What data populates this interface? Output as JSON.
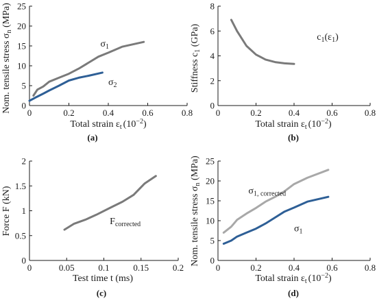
{
  "colors": {
    "gray": "#7a7a7a",
    "blue": "#2e5f96",
    "lightgray": "#a8a8a8",
    "axis": "#1a1a1a"
  },
  "chart_data": [
    {
      "panel": "(a)",
      "type": "line",
      "xlabel": "Total strain ε",
      "xlabel_sub": "t",
      "xlabel_unit": "(10",
      "xlabel_sup": "−2",
      "xlabel_close": ")",
      "ylabel": "Nom. tensile stress σ",
      "ylabel_sub": "n",
      "ylabel_unit": " (MPa)",
      "xlim": [
        0,
        0.8
      ],
      "ylim": [
        0,
        25
      ],
      "xticks": [
        "0",
        "0.2",
        "0.4",
        "0.6",
        "0.8"
      ],
      "yticks": [
        "0",
        "5",
        "10",
        "15",
        "20",
        "25"
      ],
      "series": [
        {
          "name": "σ",
          "name_sub": "1",
          "color": "gray",
          "x": [
            0.02,
            0.04,
            0.07,
            0.1,
            0.15,
            0.2,
            0.25,
            0.3,
            0.35,
            0.4,
            0.47,
            0.58
          ],
          "y": [
            2.5,
            4.0,
            4.8,
            6.0,
            7.0,
            8.0,
            9.3,
            10.8,
            12.3,
            13.3,
            14.8,
            16.0
          ]
        },
        {
          "name": "σ",
          "name_sub": "2",
          "color": "blue",
          "x": [
            0.0,
            0.03,
            0.07,
            0.1,
            0.15,
            0.2,
            0.25,
            0.3,
            0.37
          ],
          "y": [
            1.2,
            2.0,
            3.0,
            3.8,
            5.0,
            6.3,
            7.0,
            7.5,
            8.3
          ]
        }
      ]
    },
    {
      "panel": "(b)",
      "type": "line",
      "xlabel": "Total strain ε",
      "xlabel_sub": "t",
      "xlabel_unit": "(10",
      "xlabel_sup": "−2",
      "xlabel_close": ")",
      "ylabel": "Stiffness c",
      "ylabel_sub": "1",
      "ylabel_unit": " (GPa)",
      "xlim": [
        0,
        0.8
      ],
      "ylim": [
        0,
        8
      ],
      "xticks": [
        "0",
        "0.2",
        "0.4",
        "0.6",
        "0.8"
      ],
      "yticks": [
        "0",
        "2",
        "4",
        "6",
        "8"
      ],
      "series": [
        {
          "name": "c",
          "name_sub": "1",
          "name_rest": "(ε",
          "name_rest_sub": "1",
          "name_close": ")",
          "color": "gray",
          "x": [
            0.07,
            0.1,
            0.15,
            0.2,
            0.25,
            0.3,
            0.35,
            0.4
          ],
          "y": [
            6.9,
            6.0,
            4.8,
            4.1,
            3.7,
            3.5,
            3.4,
            3.35
          ]
        }
      ]
    },
    {
      "panel": "(c)",
      "type": "line",
      "xlabel": "Test time t (ms)",
      "ylabel": "Force F (kN)",
      "xlim": [
        0,
        0.2
      ],
      "ylim": [
        0,
        2
      ],
      "xticks": [
        "0",
        "0.05",
        "0.1",
        "0.15",
        "0.2"
      ],
      "yticks": [
        "0",
        "0.5",
        "1",
        "1.5",
        "2"
      ],
      "series": [
        {
          "name": "F",
          "name_sub": "corrected",
          "color": "gray",
          "x": [
            0.047,
            0.06,
            0.075,
            0.09,
            0.11,
            0.125,
            0.14,
            0.155,
            0.17
          ],
          "y": [
            0.62,
            0.74,
            0.82,
            0.92,
            1.07,
            1.18,
            1.32,
            1.55,
            1.7
          ]
        }
      ]
    },
    {
      "panel": "(d)",
      "type": "line",
      "xlabel": "Total strain ε",
      "xlabel_sub": "t",
      "xlabel_unit": "(10",
      "xlabel_sup": "−2",
      "xlabel_close": ")",
      "ylabel": "Nom. tensile stress σ",
      "ylabel_sub": "n",
      "ylabel_unit": " (MPa)",
      "xlim": [
        0,
        0.8
      ],
      "ylim": [
        0,
        25
      ],
      "xticks": [
        "0",
        "0.2",
        "0.4",
        "0.6",
        "0.8"
      ],
      "yticks": [
        "0",
        "5",
        "10",
        "15",
        "20",
        "25"
      ],
      "series": [
        {
          "name": "σ",
          "name_sub": "1, corrected",
          "color": "lightgray",
          "x": [
            0.03,
            0.07,
            0.1,
            0.15,
            0.2,
            0.25,
            0.3,
            0.35,
            0.4,
            0.47,
            0.58
          ],
          "y": [
            7.0,
            8.5,
            10.2,
            11.8,
            13.2,
            14.8,
            16.0,
            17.4,
            19.2,
            20.8,
            22.8
          ]
        },
        {
          "name": "σ",
          "name_sub": "1",
          "color": "blue",
          "x": [
            0.03,
            0.07,
            0.1,
            0.15,
            0.2,
            0.25,
            0.3,
            0.35,
            0.4,
            0.47,
            0.58
          ],
          "y": [
            4.2,
            5.0,
            6.0,
            7.0,
            8.0,
            9.3,
            10.8,
            12.3,
            13.3,
            14.8,
            16.0
          ]
        }
      ]
    }
  ]
}
